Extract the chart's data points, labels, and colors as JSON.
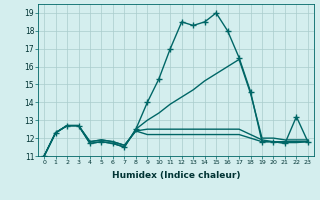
{
  "xlabel": "Humidex (Indice chaleur)",
  "bg_color": "#d4eeee",
  "grid_color": "#aacccc",
  "line_color": "#006666",
  "xlim": [
    -0.5,
    23.5
  ],
  "ylim": [
    11,
    19.5
  ],
  "yticks": [
    11,
    12,
    13,
    14,
    15,
    16,
    17,
    18,
    19
  ],
  "xticks": [
    0,
    1,
    2,
    3,
    4,
    5,
    6,
    7,
    8,
    9,
    10,
    11,
    12,
    13,
    14,
    15,
    16,
    17,
    18,
    19,
    20,
    21,
    22,
    23
  ],
  "series": [
    {
      "x": [
        0,
        1,
        2,
        3,
        4,
        5,
        6,
        7,
        8,
        9,
        10,
        11,
        12,
        13,
        14,
        15,
        16,
        17,
        18,
        19,
        20,
        21,
        22,
        23
      ],
      "y": [
        11.0,
        12.3,
        12.7,
        12.7,
        11.7,
        11.8,
        11.7,
        11.5,
        12.5,
        14.0,
        15.3,
        17.0,
        18.5,
        18.3,
        18.5,
        19.0,
        18.0,
        16.5,
        14.6,
        11.8,
        11.8,
        11.7,
        13.2,
        11.8
      ],
      "marker": "+"
    },
    {
      "x": [
        0,
        1,
        2,
        3,
        4,
        5,
        6,
        7,
        8,
        9,
        10,
        11,
        12,
        13,
        14,
        15,
        16,
        17,
        18,
        19,
        20,
        21,
        22,
        23
      ],
      "y": [
        11.0,
        12.3,
        12.7,
        12.7,
        11.7,
        11.8,
        11.7,
        11.5,
        12.5,
        13.0,
        13.4,
        13.9,
        14.3,
        14.7,
        15.2,
        15.6,
        16.0,
        16.4,
        14.5,
        12.0,
        12.0,
        11.9,
        11.9,
        11.9
      ],
      "marker": null
    },
    {
      "x": [
        0,
        1,
        2,
        3,
        4,
        5,
        6,
        7,
        8,
        9,
        10,
        11,
        12,
        13,
        14,
        15,
        16,
        17,
        18,
        19,
        20,
        21,
        22,
        23
      ],
      "y": [
        11.0,
        12.3,
        12.7,
        12.7,
        11.8,
        11.9,
        11.8,
        11.6,
        12.4,
        12.5,
        12.5,
        12.5,
        12.5,
        12.5,
        12.5,
        12.5,
        12.5,
        12.5,
        12.2,
        11.9,
        11.8,
        11.8,
        11.8,
        11.8
      ],
      "marker": null
    },
    {
      "x": [
        0,
        1,
        2,
        3,
        4,
        5,
        6,
        7,
        8,
        9,
        10,
        11,
        12,
        13,
        14,
        15,
        16,
        17,
        18,
        19,
        20,
        21,
        22,
        23
      ],
      "y": [
        11.0,
        12.3,
        12.7,
        12.7,
        11.8,
        11.9,
        11.8,
        11.6,
        12.4,
        12.2,
        12.2,
        12.2,
        12.2,
        12.2,
        12.2,
        12.2,
        12.2,
        12.2,
        12.0,
        11.8,
        11.8,
        11.75,
        11.75,
        11.8
      ],
      "marker": null
    }
  ]
}
